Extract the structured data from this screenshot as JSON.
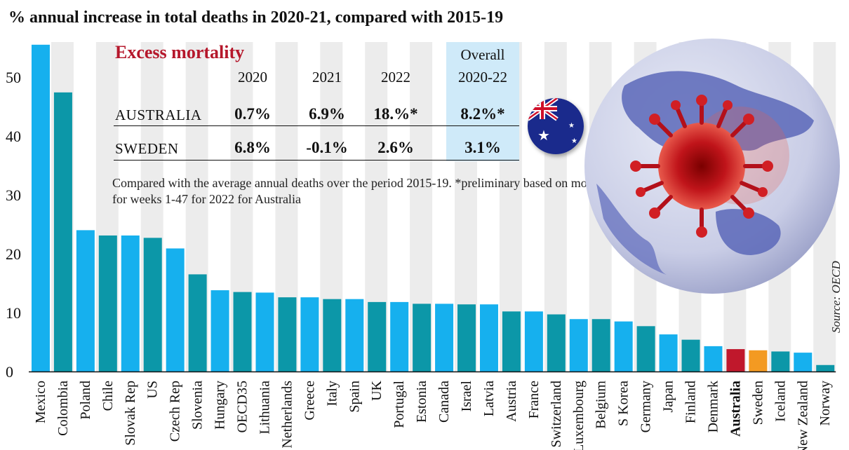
{
  "subtitle": "% annual increase in total deaths in 2020-21, compared with 2015-19",
  "source": "Source: OECD",
  "table": {
    "title": "Excess mortality",
    "columns": [
      "2020",
      "2021",
      "2022",
      "Overall\n2020-22"
    ],
    "overall_line1": "Overall",
    "overall_line2": "2020-22",
    "rows": [
      {
        "country": "AUSTRALIA",
        "values": [
          "0.7%",
          "6.9%",
          "18.%*",
          "8.2%*"
        ]
      },
      {
        "country": "SWEDEN",
        "values": [
          "6.8%",
          "-0.1%",
          "2.6%",
          "3.1%"
        ]
      }
    ],
    "note": "Compared with the average annual deaths over the period 2015-19. *preliminary based on mortality for weeks 1-47 for 2022 for Australia"
  },
  "colors": {
    "light_blue": "#16b0ee",
    "teal": "#0c97a8",
    "australia": "#c0182c",
    "sweden": "#f39a22",
    "stripe": "#ececec",
    "title_red": "#b5172b"
  },
  "chart_data": {
    "type": "bar",
    "title": "% annual increase in total deaths in 2020-21, compared with 2015-19",
    "xlabel": "",
    "ylabel": "",
    "ylim": [
      0,
      56
    ],
    "yticks": [
      0,
      10,
      20,
      30,
      40,
      50
    ],
    "grid": false,
    "categories": [
      "Mexico",
      "Colombia",
      "Poland",
      "Chile",
      "Slovak Rep",
      "US",
      "Czech Rep",
      "Slovenia",
      "Hungary",
      "OECD35",
      "Lithuania",
      "Netherlands",
      "Greece",
      "Italy",
      "Spain",
      "UK",
      "Portugal",
      "Estonia",
      "Canada",
      "Israel",
      "Latvia",
      "Austria",
      "France",
      "Switzerland",
      "Luxembourg",
      "Belgium",
      "S Korea",
      "Germany",
      "Japan",
      "Finland",
      "Denmark",
      "Australia",
      "Sweden",
      "Iceland",
      "New Zealand",
      "Norway"
    ],
    "values": [
      55.5,
      47.4,
      24.0,
      23.1,
      23.1,
      22.7,
      20.9,
      16.5,
      13.8,
      13.5,
      13.4,
      12.6,
      12.6,
      12.3,
      12.3,
      11.8,
      11.8,
      11.5,
      11.5,
      11.4,
      11.4,
      10.2,
      10.2,
      9.7,
      8.9,
      8.9,
      8.5,
      7.7,
      6.3,
      5.4,
      4.3,
      3.8,
      3.6,
      3.4,
      3.2,
      1.1
    ],
    "bar_colors": [
      "light_blue",
      "teal",
      "light_blue",
      "teal",
      "light_blue",
      "teal",
      "light_blue",
      "teal",
      "light_blue",
      "teal",
      "light_blue",
      "teal",
      "light_blue",
      "teal",
      "light_blue",
      "teal",
      "light_blue",
      "teal",
      "light_blue",
      "teal",
      "light_blue",
      "teal",
      "light_blue",
      "teal",
      "light_blue",
      "teal",
      "light_blue",
      "teal",
      "light_blue",
      "teal",
      "light_blue",
      "australia",
      "sweden",
      "teal",
      "light_blue",
      "teal"
    ],
    "highlight_label": "Australia"
  }
}
